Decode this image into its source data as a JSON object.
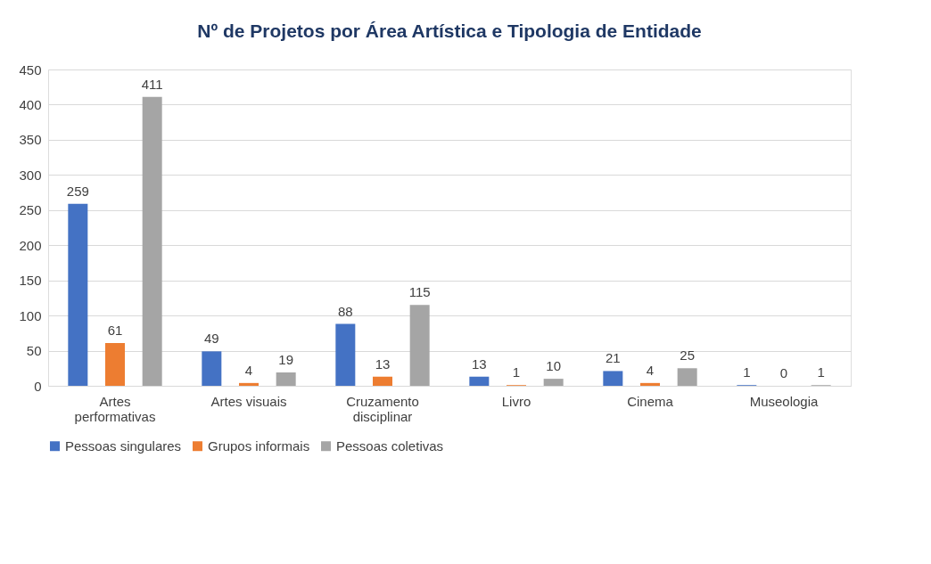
{
  "chart_data": {
    "type": "bar",
    "title": "Nº de Projetos por Área Artística e Tipologia de Entidade",
    "categories": [
      "Artes performativas",
      "Artes visuais",
      "Cruzamento disciplinar",
      "Livro",
      "Cinema",
      "Museologia"
    ],
    "series": [
      {
        "name": "Pessoas singulares",
        "color": "#4472c4",
        "values": [
          259,
          49,
          88,
          13,
          21,
          1
        ]
      },
      {
        "name": "Grupos informais",
        "color": "#ed7d31",
        "values": [
          61,
          4,
          13,
          1,
          4,
          0
        ]
      },
      {
        "name": "Pessoas coletivas",
        "color": "#a5a5a5",
        "values": [
          411,
          19,
          115,
          10,
          25,
          1
        ]
      }
    ],
    "ylim": [
      0,
      450
    ],
    "yticks": [
      0,
      50,
      100,
      150,
      200,
      250,
      300,
      350,
      400,
      450
    ],
    "grid": "y",
    "legend": "bottom",
    "data_labels": true
  }
}
